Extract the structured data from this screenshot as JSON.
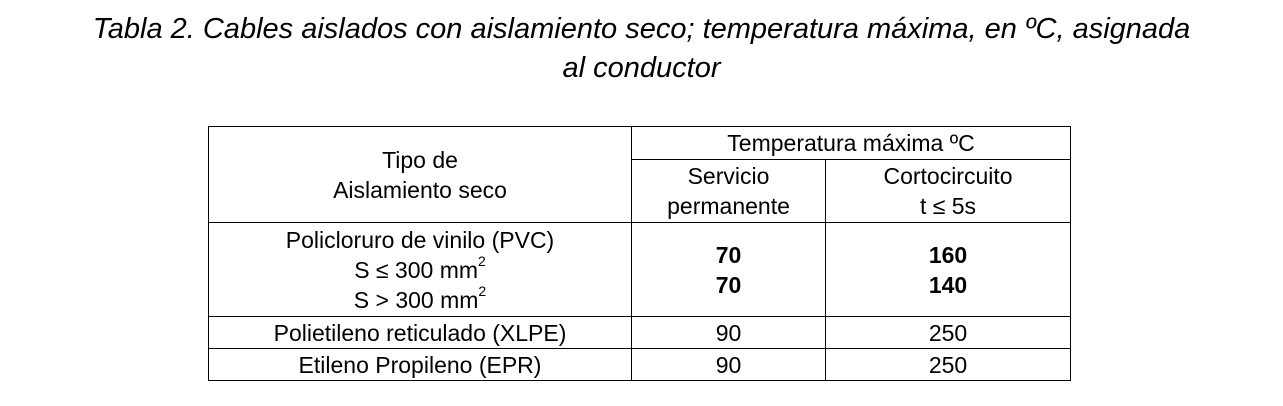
{
  "title": {
    "line1": "Tabla 2. Cables aislados con aislamiento seco; temperatura máxima, en ºC, asignada",
    "line2": "al conductor"
  },
  "table": {
    "header": {
      "col1_line1": "Tipo de",
      "col1_line2": "Aislamiento seco",
      "group": "Temperatura máxima ºC",
      "col2_line1": "Servicio",
      "col2_line2": "permanente",
      "col3_line1": "Cortocircuito",
      "col3_line2": "t ≤ 5s"
    },
    "pvc": {
      "name": "Policloruro de vinilo (PVC)",
      "sub1_text": "S  ≤ 300 mm",
      "sub1_sup": "2",
      "sub2_text": "S > 300 mm",
      "sub2_sup": "2",
      "sub1_servicio": "70",
      "sub1_cortocircuito": "160",
      "sub2_servicio": "70",
      "sub2_cortocircuito": "140"
    },
    "rows": [
      {
        "name": "Polietileno reticulado (XLPE)",
        "servicio": "90",
        "cortocircuito": "250"
      },
      {
        "name": "Etileno Propileno (EPR)",
        "servicio": "90",
        "cortocircuito": "250"
      }
    ]
  }
}
